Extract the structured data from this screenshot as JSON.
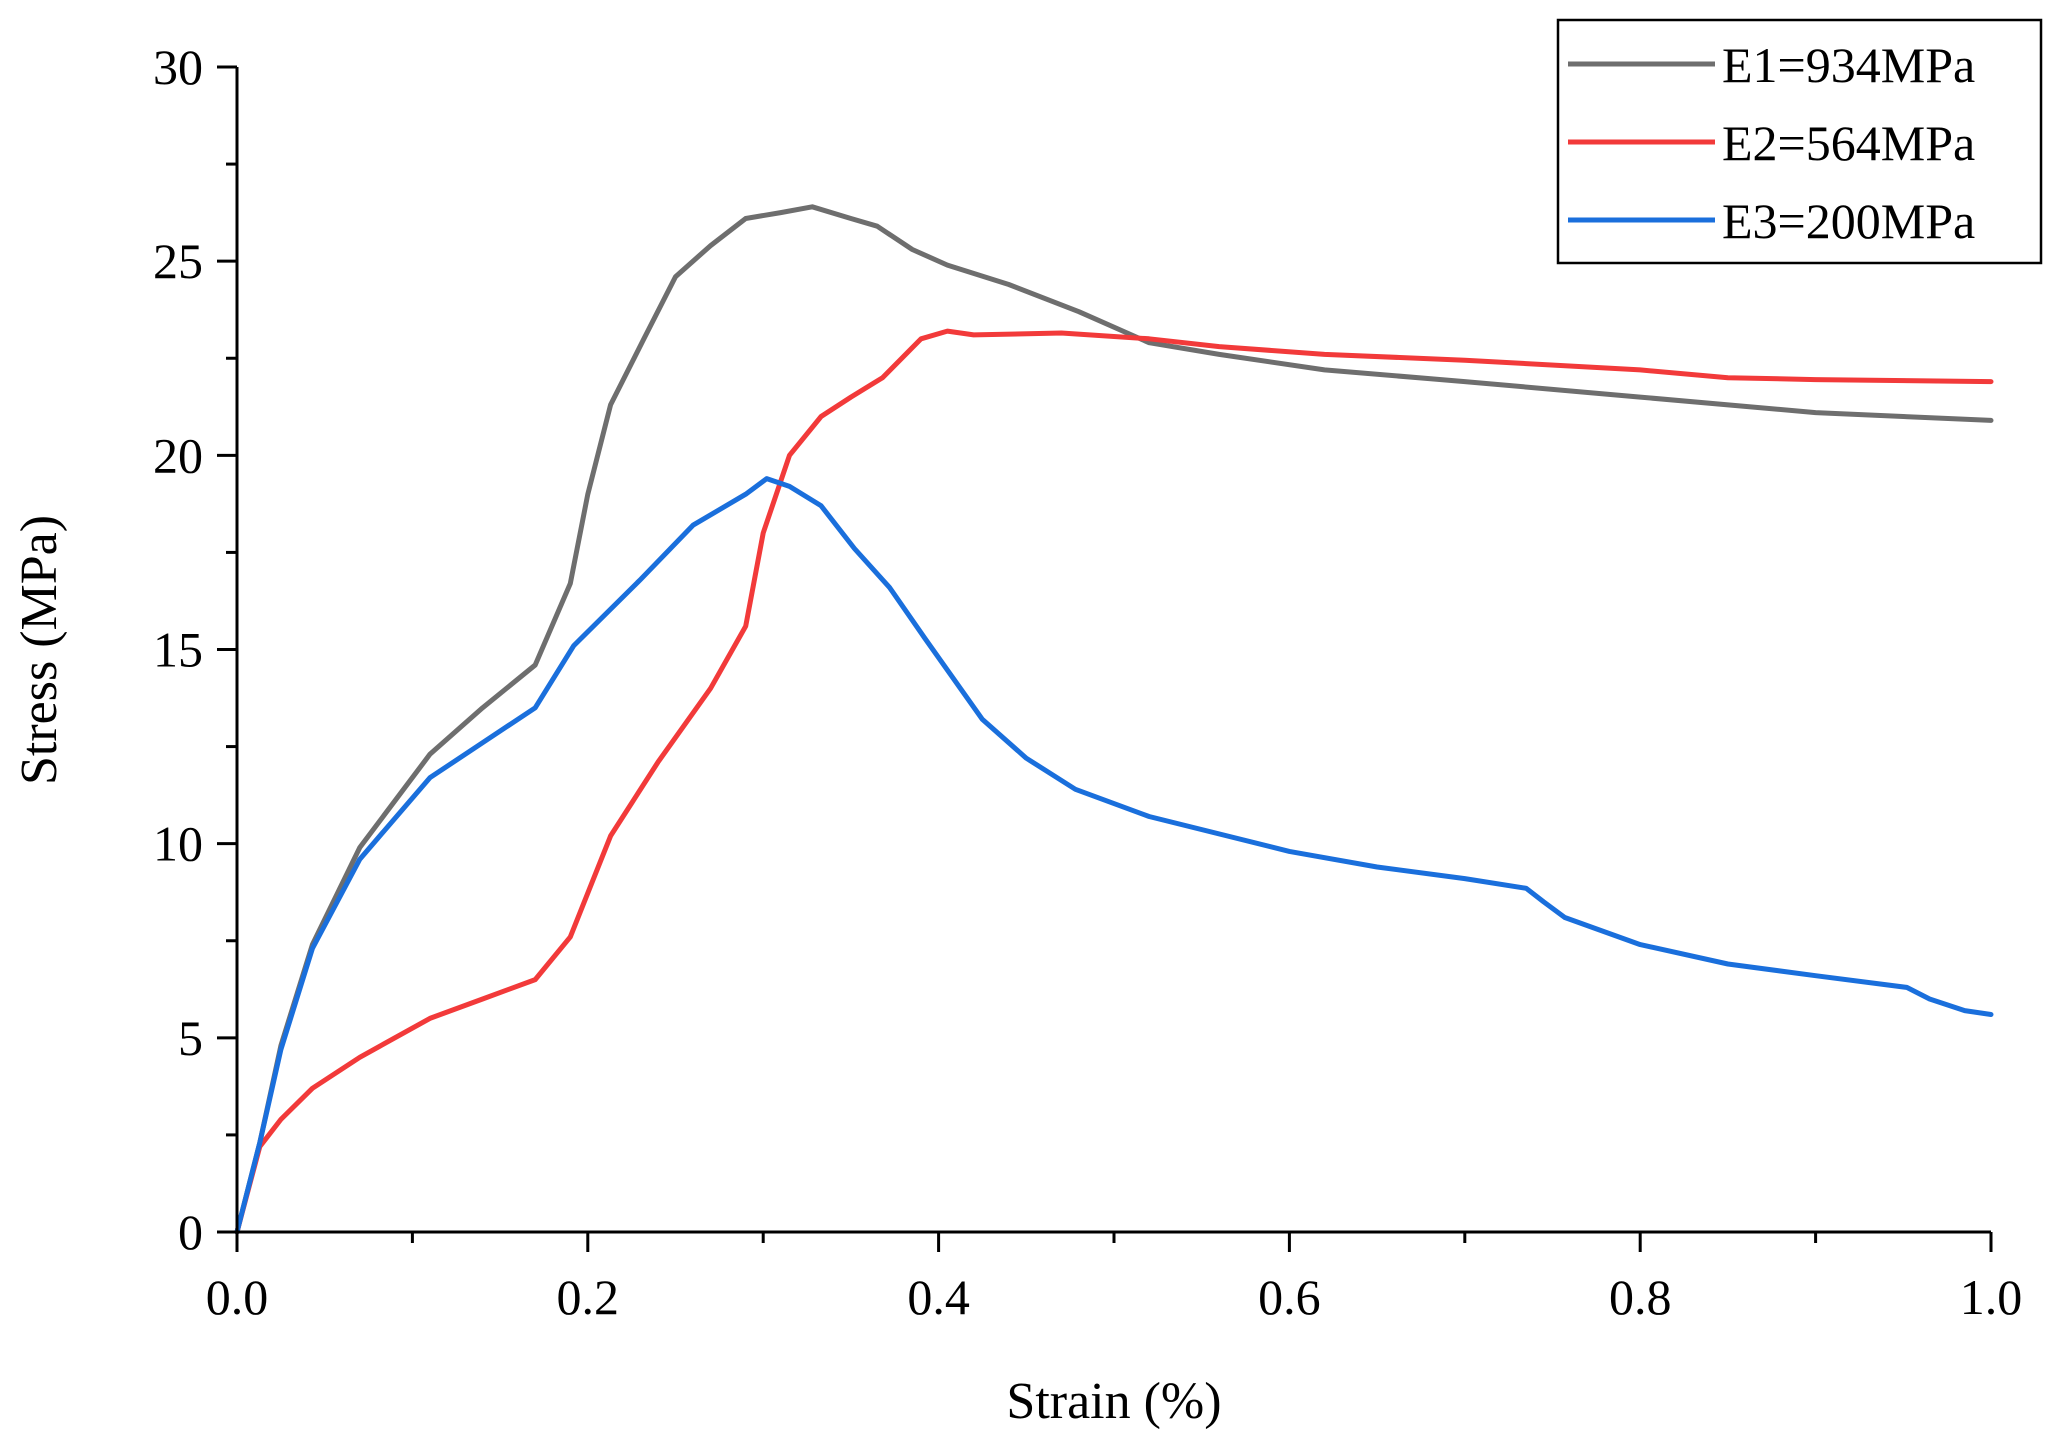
{
  "chart_data": {
    "type": "line",
    "title": "",
    "xlabel": "Strain (%)",
    "ylabel": "Stress (MPa)",
    "xlim": [
      0,
      1.0
    ],
    "ylim": [
      0,
      30
    ],
    "xticks": [
      "0.0",
      "0.2",
      "0.4",
      "0.6",
      "0.8",
      "1.0"
    ],
    "yticks": [
      "0",
      "5",
      "10",
      "15",
      "20",
      "25",
      "30"
    ],
    "legend_position": "top-right",
    "grid": false,
    "series": [
      {
        "name": "E1=934MPa",
        "color": "#6e6e6e",
        "points": [
          [
            0,
            0
          ],
          [
            0.013,
            2.3
          ],
          [
            0.025,
            4.8
          ],
          [
            0.043,
            7.4
          ],
          [
            0.07,
            9.9
          ],
          [
            0.11,
            12.3
          ],
          [
            0.14,
            13.5
          ],
          [
            0.17,
            14.6
          ],
          [
            0.19,
            16.7
          ],
          [
            0.2,
            19.0
          ],
          [
            0.213,
            21.3
          ],
          [
            0.232,
            23.0
          ],
          [
            0.25,
            24.6
          ],
          [
            0.27,
            25.4
          ],
          [
            0.29,
            26.1
          ],
          [
            0.31,
            26.25
          ],
          [
            0.328,
            26.4
          ],
          [
            0.35,
            26.1
          ],
          [
            0.365,
            25.9
          ],
          [
            0.385,
            25.3
          ],
          [
            0.405,
            24.9
          ],
          [
            0.44,
            24.4
          ],
          [
            0.48,
            23.7
          ],
          [
            0.52,
            22.9
          ],
          [
            0.56,
            22.6
          ],
          [
            0.62,
            22.2
          ],
          [
            0.7,
            21.9
          ],
          [
            0.8,
            21.5
          ],
          [
            0.9,
            21.1
          ],
          [
            1.0,
            20.9
          ]
        ]
      },
      {
        "name": "E2=564MPa",
        "color": "#f23a3a",
        "points": [
          [
            0,
            0
          ],
          [
            0.013,
            2.2
          ],
          [
            0.025,
            2.9
          ],
          [
            0.043,
            3.7
          ],
          [
            0.07,
            4.5
          ],
          [
            0.11,
            5.5
          ],
          [
            0.14,
            6.0
          ],
          [
            0.17,
            6.5
          ],
          [
            0.19,
            7.6
          ],
          [
            0.213,
            10.2
          ],
          [
            0.24,
            12.1
          ],
          [
            0.27,
            14.0
          ],
          [
            0.29,
            15.6
          ],
          [
            0.3,
            18.0
          ],
          [
            0.315,
            20.0
          ],
          [
            0.333,
            21.0
          ],
          [
            0.35,
            21.5
          ],
          [
            0.368,
            22.0
          ],
          [
            0.39,
            23.0
          ],
          [
            0.405,
            23.2
          ],
          [
            0.42,
            23.1
          ],
          [
            0.47,
            23.15
          ],
          [
            0.52,
            23.0
          ],
          [
            0.56,
            22.8
          ],
          [
            0.62,
            22.6
          ],
          [
            0.7,
            22.45
          ],
          [
            0.8,
            22.2
          ],
          [
            0.85,
            22.0
          ],
          [
            0.9,
            21.95
          ],
          [
            1.0,
            21.9
          ]
        ]
      },
      {
        "name": "E3=200MPa",
        "color": "#1a6fdc",
        "points": [
          [
            0,
            0
          ],
          [
            0.013,
            2.3
          ],
          [
            0.025,
            4.7
          ],
          [
            0.043,
            7.3
          ],
          [
            0.07,
            9.6
          ],
          [
            0.11,
            11.7
          ],
          [
            0.14,
            12.6
          ],
          [
            0.17,
            13.5
          ],
          [
            0.192,
            15.1
          ],
          [
            0.23,
            16.8
          ],
          [
            0.26,
            18.2
          ],
          [
            0.29,
            19.0
          ],
          [
            0.302,
            19.4
          ],
          [
            0.315,
            19.2
          ],
          [
            0.333,
            18.7
          ],
          [
            0.352,
            17.6
          ],
          [
            0.372,
            16.6
          ],
          [
            0.392,
            15.3
          ],
          [
            0.425,
            13.2
          ],
          [
            0.45,
            12.2
          ],
          [
            0.478,
            11.4
          ],
          [
            0.52,
            10.7
          ],
          [
            0.6,
            9.8
          ],
          [
            0.65,
            9.4
          ],
          [
            0.7,
            9.1
          ],
          [
            0.735,
            8.85
          ],
          [
            0.745,
            8.5
          ],
          [
            0.757,
            8.1
          ],
          [
            0.8,
            7.4
          ],
          [
            0.85,
            6.9
          ],
          [
            0.9,
            6.6
          ],
          [
            0.952,
            6.3
          ],
          [
            0.965,
            6.0
          ],
          [
            0.985,
            5.7
          ],
          [
            1.0,
            5.6
          ]
        ]
      }
    ]
  }
}
